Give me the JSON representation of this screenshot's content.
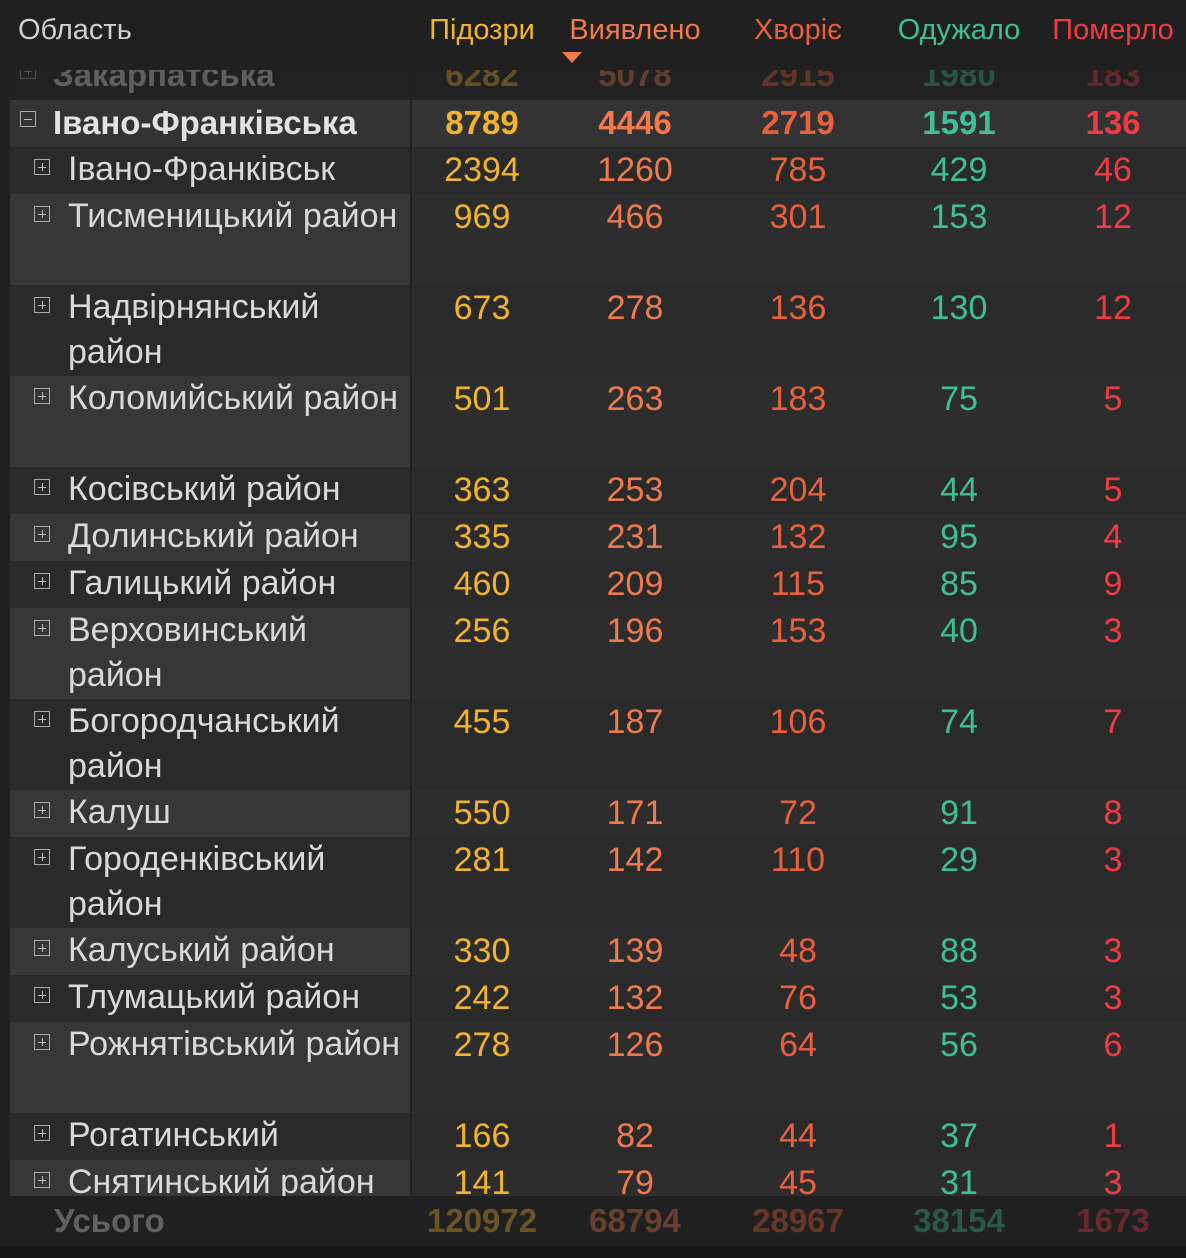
{
  "header": {
    "name": "Область",
    "col1": "Підозри",
    "col2": "Виявлено",
    "col3": "Хворіє",
    "col4": "Одужало",
    "col5": "Померло"
  },
  "rows": [
    {
      "type": "region",
      "faded": true,
      "name": "Закарпатська",
      "values": [
        "6282",
        "5078",
        "2915",
        "1980",
        "183"
      ]
    },
    {
      "type": "region",
      "name": "Івано-Франківська",
      "values": [
        "8789",
        "4446",
        "2719",
        "1591",
        "136"
      ]
    },
    {
      "type": "district",
      "name": "Івано-Франківськ",
      "values": [
        "2394",
        "1260",
        "785",
        "429",
        "46"
      ]
    },
    {
      "type": "district",
      "name": "Тисменицький район",
      "values": [
        "969",
        "466",
        "301",
        "153",
        "12"
      ]
    },
    {
      "type": "district",
      "name": "Надвірнянський район",
      "values": [
        "673",
        "278",
        "136",
        "130",
        "12"
      ]
    },
    {
      "type": "district",
      "name": "Коломийський район",
      "values": [
        "501",
        "263",
        "183",
        "75",
        "5"
      ]
    },
    {
      "type": "district",
      "name": "Косівський район",
      "values": [
        "363",
        "253",
        "204",
        "44",
        "5"
      ]
    },
    {
      "type": "district",
      "name": "Долинський район",
      "values": [
        "335",
        "231",
        "132",
        "95",
        "4"
      ]
    },
    {
      "type": "district",
      "name": "Галицький район",
      "values": [
        "460",
        "209",
        "115",
        "85",
        "9"
      ]
    },
    {
      "type": "district",
      "name": "Верховинський район",
      "values": [
        "256",
        "196",
        "153",
        "40",
        "3"
      ]
    },
    {
      "type": "district",
      "name": "Богородчанський район",
      "values": [
        "455",
        "187",
        "106",
        "74",
        "7"
      ]
    },
    {
      "type": "district",
      "name": "Калуш",
      "values": [
        "550",
        "171",
        "72",
        "91",
        "8"
      ]
    },
    {
      "type": "district",
      "name": "Городенківський район",
      "values": [
        "281",
        "142",
        "110",
        "29",
        "3"
      ]
    },
    {
      "type": "district",
      "name": "Калуський район",
      "values": [
        "330",
        "139",
        "48",
        "88",
        "3"
      ]
    },
    {
      "type": "district",
      "name": "Тлумацький район",
      "values": [
        "242",
        "132",
        "76",
        "53",
        "3"
      ]
    },
    {
      "type": "district",
      "name": "Рожнятівський район",
      "values": [
        "278",
        "126",
        "64",
        "56",
        "6"
      ]
    },
    {
      "type": "district",
      "name": "Рогатинський",
      "values": [
        "166",
        "82",
        "44",
        "37",
        "1"
      ]
    },
    {
      "type": "district",
      "name": "Снятинський район",
      "values": [
        "141",
        "79",
        "45",
        "31",
        "3"
      ]
    }
  ],
  "footer": {
    "name": "Усього",
    "values": [
      "120972",
      "68794",
      "28967",
      "38154",
      "1673"
    ]
  },
  "colors": {
    "suspected": "#f0b430",
    "confirmed": "#ef7a4e",
    "sick": "#e8603c",
    "recovered": "#3fbf97",
    "died": "#ee3c44"
  }
}
